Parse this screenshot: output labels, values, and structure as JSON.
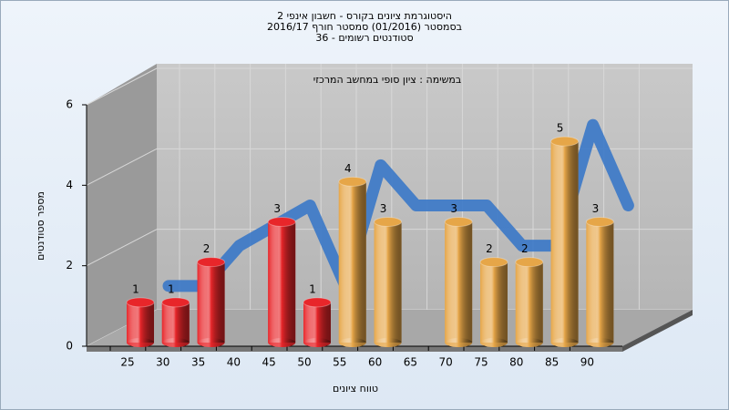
{
  "chart_data": {
    "type": "bar",
    "title_lines": [
      "היסטוגרמת ציונים בקורס - חשבון אינפי 2",
      "בסמסטר  (01/2016)  סמסטר חורף 2016/17",
      "סטודנטים רשומים - 36"
    ],
    "subtitle": "במשימה : ציון סופי במחשב המרכזי",
    "x_label": "טווח ציונים",
    "y_label": "מספר סטודנטים",
    "categories": [
      "25",
      "30",
      "35",
      "40",
      "45",
      "50",
      "55",
      "60",
      "65",
      "70",
      "75",
      "80",
      "85",
      "90"
    ],
    "values": [
      1,
      1,
      2,
      null,
      3,
      1,
      4,
      3,
      null,
      3,
      2,
      2,
      5,
      3
    ],
    "colors": [
      "#e8262a",
      "#e8262a",
      "#e8262a",
      null,
      "#e8262a",
      "#e8262a",
      "#e6a648",
      "#e6a648",
      null,
      "#e6a648",
      "#e6a648",
      "#e6a648",
      "#e6a648",
      "#e6a648"
    ],
    "trend_color": "#3a78c8",
    "ylim": [
      0,
      6
    ],
    "yticks": [
      0,
      2,
      4,
      6
    ],
    "grid": true
  }
}
